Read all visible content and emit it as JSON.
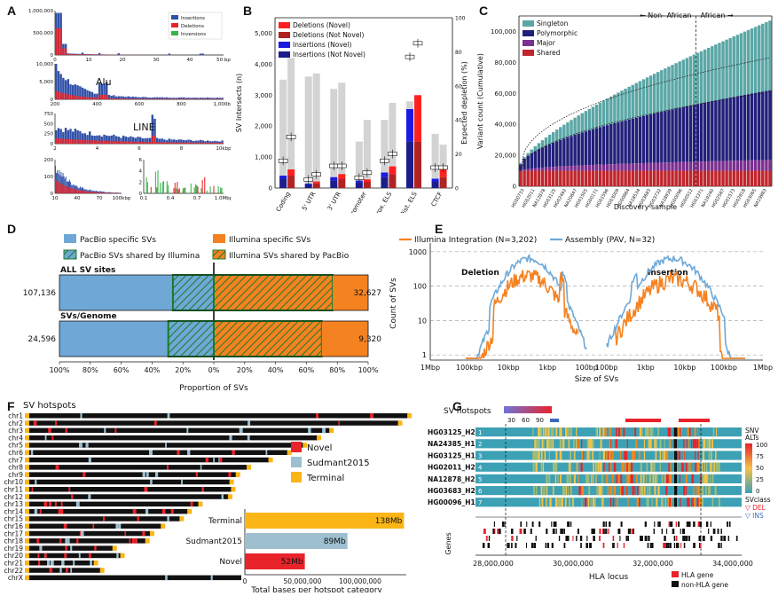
{
  "colors": {
    "insertion_blue": "#3151a8",
    "deletion_red": "#e8232a",
    "inversion_green": "#35b44a",
    "del_novel": "#ff2020",
    "del_not_novel": "#b22222",
    "ins_novel": "#1a1ae0",
    "ins_not_novel": "#1c1c8a",
    "singleton": "#5ba7a6",
    "polymorphic": "#22207a",
    "major": "#7b2f8f",
    "shared": "#c0262c",
    "pacbio": "#6fa8d6",
    "illumina": "#f58220",
    "shared_green": "#1a7a2a",
    "novel": "#e8232a",
    "sudmant": "#9dbfd0",
    "terminal": "#fbb516"
  },
  "panelA": {
    "label": "A",
    "legend": [
      "Insertions",
      "Deletions",
      "Inversions"
    ],
    "hist1": {
      "yticks": [
        "1,000,000",
        "500,000",
        "0"
      ],
      "xticks": [
        "0",
        "10",
        "20",
        "30",
        "40",
        "50 bp"
      ]
    },
    "hist2": {
      "title": "Alu",
      "yticks": [
        "10,000",
        "5,000",
        "0"
      ],
      "xticks": [
        "200",
        "400",
        "600",
        "800",
        "1,000bp"
      ]
    },
    "hist3": {
      "title": "LINE",
      "yticks": [
        "750",
        "500",
        "250",
        "0"
      ],
      "xticks": [
        "2",
        "4",
        "6",
        "8",
        "10kbp"
      ]
    },
    "hist4": {
      "yticks": [
        "200",
        "100",
        "0"
      ],
      "xticks": [
        "10",
        "40",
        "70",
        "100kbp"
      ]
    },
    "hist5": {
      "yticks": [
        "6",
        "4",
        "2",
        "0"
      ],
      "xticks": [
        "0.1",
        "0.4",
        "0.7",
        "1.0Mbp"
      ]
    }
  },
  "panelB": {
    "label": "B",
    "ylabel": "SV Intersects (n)",
    "ylabel2": "Expected depletion (%)",
    "yticks": [
      "5,000",
      "4,000",
      "3,000",
      "2,000",
      "1,000",
      "0"
    ],
    "yticks2": [
      "100",
      "80",
      "60",
      "40",
      "20",
      "0"
    ],
    "legend": [
      "Deletions (Novel)",
      "Deletions (Not Novel)",
      "Insertions (Novel)",
      "Insertions (Not Novel)"
    ],
    "chart_data": {
      "type": "bar",
      "categories": [
        "Coding",
        "5' UTR",
        "3' UTR",
        "Promoter",
        "Prox. ELS",
        "Dist. ELS",
        "CTCF"
      ],
      "series": [
        {
          "name": "Insertions (Not Novel)",
          "values": [
            300,
            100,
            250,
            180,
            350,
            1500,
            200
          ]
        },
        {
          "name": "Insertions (Novel)",
          "values": [
            100,
            40,
            100,
            60,
            150,
            1050,
            100
          ]
        },
        {
          "name": "Deletions (Not Novel)",
          "values": [
            400,
            150,
            300,
            200,
            450,
            1500,
            350
          ]
        },
        {
          "name": "Deletions (Novel)",
          "values": [
            200,
            60,
            150,
            80,
            250,
            1500,
            250
          ]
        },
        {
          "name": "Expected (grey)",
          "values": [
            3500,
            3600,
            3200,
            1500,
            2200,
            2800,
            1750
          ]
        },
        {
          "name": "Expected (grey 2)",
          "values": [
            4200,
            3700,
            3400,
            2200,
            2750,
            2950,
            1400
          ]
        }
      ],
      "depletion_markers": [
        16,
        5,
        13,
        6,
        16,
        77,
        12
      ],
      "depletion_markers_2": [
        30,
        8,
        13,
        9,
        20,
        85,
        12
      ],
      "ylim": [
        0,
        5500
      ]
    }
  },
  "panelC": {
    "label": "C",
    "ylabel": "Variant count (Cumulative)",
    "xlabel": "Discovery sample",
    "region_left": "Non- African",
    "region_right": "African",
    "yticks": [
      "100,000",
      "80,000",
      "60,000",
      "40,000",
      "20,000",
      "0"
    ],
    "legend": [
      "Singleton",
      "Polymorphic",
      "Major",
      "Shared"
    ],
    "chart_data": {
      "type": "bar",
      "x_count": 70,
      "singleton_top_start": 15000,
      "singleton_top_end": 107000,
      "polymorphic_top_end": 62000,
      "major_top_end": 17000,
      "shared_level": 10000,
      "african_split_index": 49,
      "ylim": [
        0,
        110000
      ],
      "sample_labels": [
        "HG00733",
        "HG02011",
        "NA12878",
        "HG03125",
        "HG02492",
        "NA20847",
        "HG01505",
        "HG00171",
        "HG01596",
        "HG03009",
        "HG00864",
        "NA18534",
        "HG03683",
        "HG03732",
        "NA18939",
        "HG00096",
        "HG00512",
        "HG03371",
        "NA19240",
        "HG02587",
        "HG01573",
        "HG02818",
        "HG03065",
        "NA19983"
      ]
    }
  },
  "panelD": {
    "label": "D",
    "legend": [
      "PacBio specific SVs",
      "PacBio SVs shared by Illumina",
      "Illumina specific SVs",
      "Illumina SVs shared by PacBio"
    ],
    "rows": [
      {
        "title": "ALL SV sites",
        "left_value": "107,136",
        "right_value": "32,627",
        "pacbio_specific": 73.5,
        "pacbio_shared": 26.5,
        "illumina_shared": 77,
        "illumina_specific": 23
      },
      {
        "title": "SVs/Genome",
        "left_value": "24,596",
        "right_value": "9,320",
        "pacbio_specific": 70.5,
        "pacbio_shared": 29.5,
        "illumina_shared": 70,
        "illumina_specific": 30
      }
    ],
    "xticks": [
      "100%",
      "80%",
      "60%",
      "40%",
      "20%",
      "0%",
      "20%",
      "40%",
      "60%",
      "80%",
      "100%"
    ],
    "xlabel": "Proportion of SVs"
  },
  "panelE": {
    "label": "E",
    "legend": [
      "Illumina Integration (N=3,202)",
      "Assembly (PAV, N=32)"
    ],
    "ylabel": "Count of SVs",
    "xlabel": "Size of SVs",
    "yticks": [
      "1000",
      "100",
      "10",
      "1"
    ],
    "xticks": [
      "1Mbp",
      "100kbp",
      "10kbp",
      "1kbp",
      "100bp",
      "100bp",
      "1kbp",
      "10kbp",
      "100kbp",
      "1Mbp"
    ],
    "deletion_label": "Deletion",
    "insertion_label": "Insertion"
  },
  "panelF": {
    "label": "F",
    "title": "SV hotspots",
    "chromosomes": [
      "chr1",
      "chr2",
      "chr3",
      "chr4",
      "chr5",
      "chr6",
      "chr7",
      "chr8",
      "chr9",
      "chr10",
      "chr11",
      "chr12",
      "chr13",
      "chr14",
      "chr15",
      "chr16",
      "chr17",
      "chr18",
      "chr19",
      "chr20",
      "chr21",
      "chr22",
      "chrX"
    ],
    "legend": [
      "Novel",
      "Sudmant2015",
      "Terminal"
    ],
    "bar_chart": {
      "type": "bar",
      "categories": [
        "Terminal",
        "Sudmant2015",
        "Novel"
      ],
      "values": [
        138,
        89,
        52
      ],
      "value_labels": [
        "138Mb",
        "89Mb",
        "52Mb"
      ],
      "xticks": [
        "0",
        "50,000,000",
        "100,000,000"
      ],
      "xlabel": "Total bases per hotspot category",
      "xlim": [
        0,
        140
      ]
    }
  },
  "panelG": {
    "label": "G",
    "title": "SV hotspots",
    "scale_ticks": [
      "30",
      "60",
      "90"
    ],
    "haplotypes": [
      "HG03125_H2",
      "NA24385_H1",
      "HG03125_H1",
      "HG02011_H2",
      "NA12878_H2",
      "HG03683_H2",
      "HG00096_H1"
    ],
    "haplotype_numbers": [
      "1",
      "2",
      "3",
      "4",
      "5",
      "6",
      "7"
    ],
    "snv_legend_title": "SNV ALTs",
    "snv_ticks": [
      "100",
      "75",
      "50",
      "25",
      "0"
    ],
    "svclass_title": "SVclass",
    "svclass": [
      "DEL",
      "INS"
    ],
    "genes_label": "Genes",
    "xticks": [
      "28,000,000",
      "30,000,000",
      "32,000,000",
      "34,000,000"
    ],
    "xlabel": "HLA locus",
    "gene_legend": [
      "HLA gene",
      "non-HLA gene"
    ]
  }
}
